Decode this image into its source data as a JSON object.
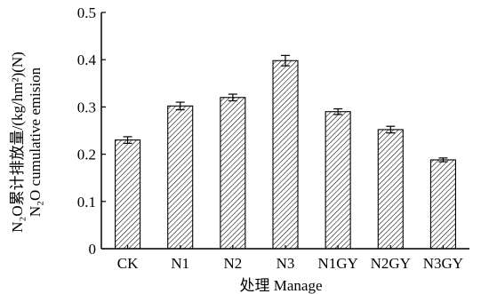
{
  "chart_data": {
    "type": "bar",
    "categories": [
      "CK",
      "N1",
      "N2",
      "N3",
      "N1GY",
      "N2GY",
      "N3GY"
    ],
    "values": [
      0.23,
      0.302,
      0.32,
      0.398,
      0.29,
      0.252,
      0.188
    ],
    "errors": [
      0.007,
      0.008,
      0.007,
      0.011,
      0.006,
      0.007,
      0.004
    ],
    "xlabel": "处理 Manage",
    "ylabel_line1": "N₂O累计排放量/(kg/hm²)(N)",
    "ylabel_line2": "N₂O cumulative emision",
    "ylim": [
      0,
      0.5
    ],
    "yticks": [
      "0",
      "0.1",
      "0.2",
      "0.3",
      "0.4",
      "0.5"
    ],
    "bar_fill": "hatched",
    "grid": false
  }
}
